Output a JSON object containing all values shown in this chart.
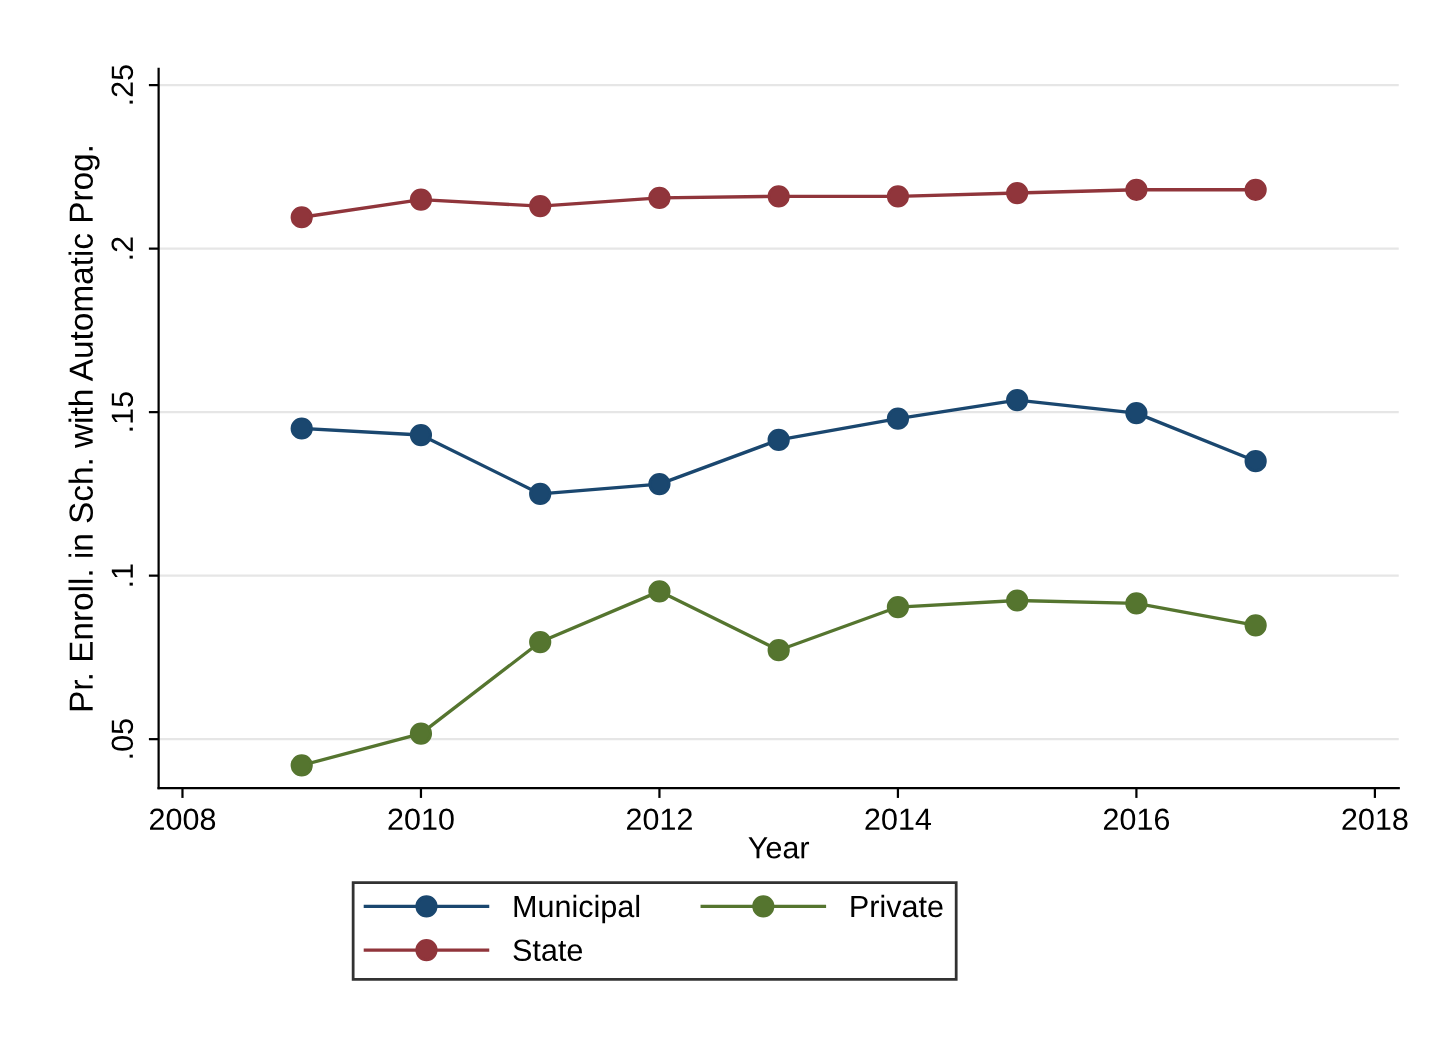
{
  "chart_data": {
    "type": "line",
    "xlabel": "Year",
    "ylabel": "Pr. Enroll. in Sch. with Automatic Prog.",
    "x": [
      2009,
      2010,
      2011,
      2012,
      2013,
      2014,
      2015,
      2016,
      2017
    ],
    "series": [
      {
        "name": "Municipal",
        "color": "#1a476f",
        "values": [
          0.145,
          0.143,
          0.125,
          0.128,
          0.1415,
          0.148,
          0.1537,
          0.1497,
          0.135
        ]
      },
      {
        "name": "State",
        "color": "#90353b",
        "values": [
          0.2096,
          0.215,
          0.213,
          0.2155,
          0.216,
          0.216,
          0.217,
          0.218,
          0.218
        ]
      },
      {
        "name": "Private",
        "color": "#55752f",
        "values": [
          0.042,
          0.0517,
          0.0797,
          0.0952,
          0.0772,
          0.0904,
          0.0924,
          0.0915,
          0.0848
        ]
      }
    ],
    "xlim": [
      2007.8,
      2018.2
    ],
    "xticks": [
      2008,
      2010,
      2012,
      2014,
      2016,
      2018
    ],
    "ylim": [
      0.035,
      0.255
    ],
    "yticks": [
      {
        "value": 0.05,
        "label": ".05"
      },
      {
        "value": 0.1,
        "label": ".1"
      },
      {
        "value": 0.15,
        "label": ".15"
      },
      {
        "value": 0.2,
        "label": ".2"
      },
      {
        "value": 0.25,
        "label": ".25"
      }
    ],
    "grid": "y",
    "legend": "bottom",
    "marker": "circle",
    "line_style": "solid"
  }
}
